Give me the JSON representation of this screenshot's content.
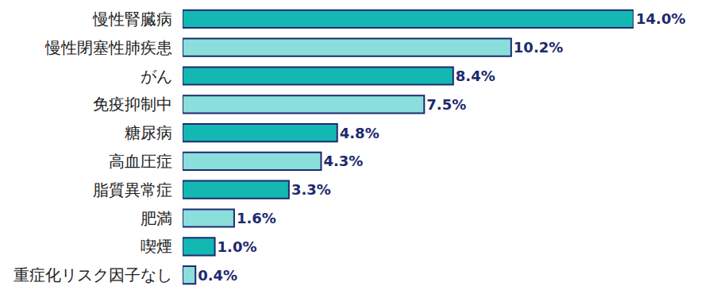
{
  "chart_data": {
    "type": "bar",
    "orientation": "horizontal",
    "categories": [
      "慢性腎臓病",
      "慢性閉塞性肺疾患",
      "がん",
      "免疫抑制中",
      "糖尿病",
      "高血圧症",
      "脂質異常症",
      "肥満",
      "喫煙",
      "重症化リスク因子なし"
    ],
    "values": [
      14.0,
      10.2,
      8.4,
      7.5,
      4.8,
      4.3,
      3.3,
      1.6,
      1.0,
      0.4
    ],
    "value_labels": [
      "14.0%",
      "10.2%",
      "8.4%",
      "7.5%",
      "4.8%",
      "4.3%",
      "3.3%",
      "1.6%",
      "1.0%",
      "0.4%"
    ],
    "colors": [
      "#14b8b3",
      "#8adfdc",
      "#14b8b3",
      "#8adfdc",
      "#14b8b3",
      "#8adfdc",
      "#14b8b3",
      "#8adfdc",
      "#14b8b3",
      "#8adfdc"
    ],
    "xlim": [
      0,
      14
    ],
    "data_labels": true,
    "tick_labels": "y",
    "grid": false
  }
}
